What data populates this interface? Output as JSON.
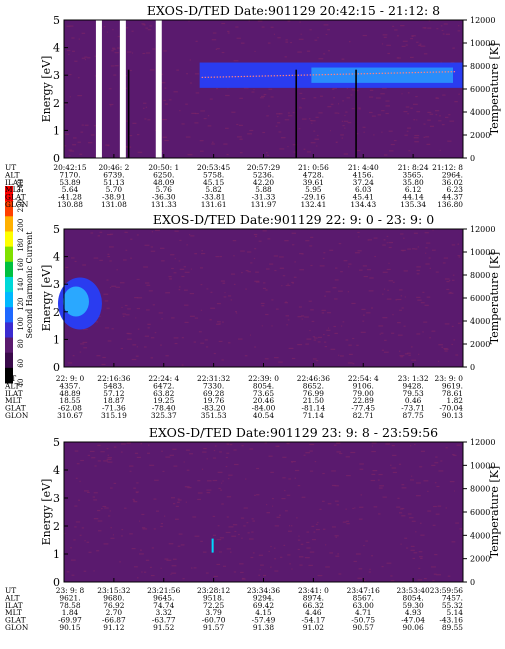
{
  "colors": {
    "background": "#5a1a6e",
    "noise": "#7a2468",
    "band_dark": "#2a3cf0",
    "band_light": "#2aa8ff",
    "colorbar": [
      "#000000",
      "#3a0a4a",
      "#5a1a6e",
      "#3b2bd0",
      "#1e68ff",
      "#00b8ff",
      "#00d8d8",
      "#00c040",
      "#80e000",
      "#ffff00",
      "#ffb000",
      "#ff4000",
      "#ff0000"
    ]
  },
  "colorbar": {
    "label": "Second Harmonic Current",
    "ticks": [
      "40",
      "60",
      "80",
      "100",
      "120",
      "140",
      "160",
      "180",
      "200",
      "220",
      "240"
    ]
  },
  "chart_data": [
    {
      "type": "heatmap",
      "title": "EXOS-D/TED   Date:901129  20:42:15 - 21:12: 8",
      "ylabel": "Energy [eV]",
      "y2label": "Temperature [K]",
      "ylim": [
        0,
        5
      ],
      "y2lim": [
        0,
        12000
      ],
      "yticks": [
        "0",
        "1",
        "2",
        "3",
        "4",
        "5"
      ],
      "y2ticks": [
        "0",
        "2000",
        "4000",
        "6000",
        "8000",
        "10000",
        "12000"
      ],
      "band": {
        "center_eV": 3.0,
        "start_fraction": 0.34,
        "label": "bright band 2.5-3.5 eV"
      },
      "gaps": [
        0.08,
        0.14,
        0.23
      ],
      "spikes": [
        0.16,
        0.58,
        0.73
      ],
      "table": {
        "row_labels": [
          "UT",
          "ALT",
          "ILAT",
          "MLT",
          "GLAT",
          "GLON"
        ],
        "columns": [
          [
            "20:42:15",
            "7170.",
            "53.89",
            "5.64",
            "-41.28",
            "130.88"
          ],
          [
            "20:46: 2",
            "6739.",
            "51.13",
            "5.70",
            "-38.91",
            "131.08"
          ],
          [
            "20:50: 1",
            "6250.",
            "48.09",
            "5.76",
            "-36.30",
            "131.33"
          ],
          [
            "20:53:45",
            "5758.",
            "45.15",
            "5.82",
            "-33.81",
            "131.61"
          ],
          [
            "20:57:29",
            "5236.",
            "42.20",
            "5.88",
            "-31.33",
            "131.97"
          ],
          [
            "21: 0:56",
            "4728.",
            "39.61",
            "5.95",
            "-29.16",
            "132.41"
          ],
          [
            "21: 4:40",
            "4156.",
            "37.24",
            "6.03",
            "45.41",
            "134.43"
          ],
          [
            "21: 8:24",
            "3565.",
            "35.80",
            "6.12",
            "44.14",
            "135.34"
          ],
          [
            "21:12: 8",
            "2964.",
            "36.02",
            "6.23",
            "44.37",
            "136.80"
          ]
        ]
      }
    },
    {
      "type": "heatmap",
      "title": "EXOS-D/TED   Date:901129  22: 9: 0 - 23: 9: 0",
      "ylabel": "Energy [eV]",
      "y2label": "Temperature [K]",
      "ylim": [
        0,
        5
      ],
      "y2lim": [
        0,
        12000
      ],
      "yticks": [
        "0",
        "1",
        "2",
        "3",
        "4",
        "5"
      ],
      "y2ticks": [
        "0",
        "2000",
        "4000",
        "6000",
        "8000",
        "10000",
        "12000"
      ],
      "blob": {
        "center_eV": 2.3,
        "x_fraction": 0.02
      },
      "table": {
        "row_labels": [
          "UT",
          "ALT",
          "ILAT",
          "MLT",
          "GLAT",
          "GLON"
        ],
        "columns": [
          [
            "22: 9: 0",
            "4357.",
            "48.89",
            "18.55",
            "-62.08",
            "310.67"
          ],
          [
            "22:16:36",
            "5483.",
            "57.12",
            "18.87",
            "-71.36",
            "315.19"
          ],
          [
            "22:24: 4",
            "6472.",
            "63.82",
            "19.25",
            "-78.40",
            "325.37"
          ],
          [
            "22:31:32",
            "7330.",
            "69.28",
            "19.76",
            "-83.20",
            "351.53"
          ],
          [
            "22:39: 0",
            "8054.",
            "73.65",
            "20.46",
            "-84.00",
            "40.54"
          ],
          [
            "22:46:36",
            "8652.",
            "76.99",
            "21.50",
            "-81.14",
            "71.14"
          ],
          [
            "22:54: 4",
            "9106.",
            "79.00",
            "22.89",
            "-77.45",
            "82.71"
          ],
          [
            "23: 1:32",
            "9428.",
            "79.53",
            "0.46",
            "-73.71",
            "87.75"
          ],
          [
            "23: 9: 0",
            "9619.",
            "78.61",
            "1.82",
            "-70.04",
            "90.13"
          ]
        ]
      }
    },
    {
      "type": "heatmap",
      "title": "EXOS-D/TED   Date:901129  23: 9: 8 - 23:59:56",
      "ylabel": "Energy [eV]",
      "y2label": "Temperature [K]",
      "ylim": [
        0,
        5
      ],
      "y2lim": [
        0,
        12000
      ],
      "yticks": [
        "0",
        "1",
        "2",
        "3",
        "4",
        "5"
      ],
      "y2ticks": [
        "0",
        "2000",
        "4000",
        "6000",
        "8000",
        "10000",
        "12000"
      ],
      "spot": {
        "center_eV": 1.3,
        "x_fraction": 0.37
      },
      "table": {
        "row_labels": [
          "UT",
          "ALT",
          "ILAT",
          "MLT",
          "GLAT",
          "GLON"
        ],
        "columns": [
          [
            "23: 9: 8",
            "9621.",
            "78.58",
            "1.84",
            "-69.97",
            "90.15"
          ],
          [
            "23:15:32",
            "9680.",
            "76.92",
            "2.70",
            "-66.87",
            "91.12"
          ],
          [
            "23:21:56",
            "9645.",
            "74.74",
            "3.32",
            "-63.77",
            "91.52"
          ],
          [
            "23:28:12",
            "9518.",
            "72.25",
            "3.79",
            "-60.70",
            "91.57"
          ],
          [
            "23:34:36",
            "9294.",
            "69.42",
            "4.15",
            "-57.49",
            "91.38"
          ],
          [
            "23:41: 0",
            "8974.",
            "66.32",
            "4.46",
            "-54.17",
            "91.02"
          ],
          [
            "23:47:16",
            "8567.",
            "63.00",
            "4.71",
            "-50.75",
            "90.57"
          ],
          [
            "23:53:40",
            "8054.",
            "59.30",
            "4.93",
            "-47.04",
            "90.06"
          ],
          [
            "23:59:56",
            "7457.",
            "55.32",
            "5.14",
            "-43.16",
            "89.55"
          ]
        ]
      }
    }
  ]
}
